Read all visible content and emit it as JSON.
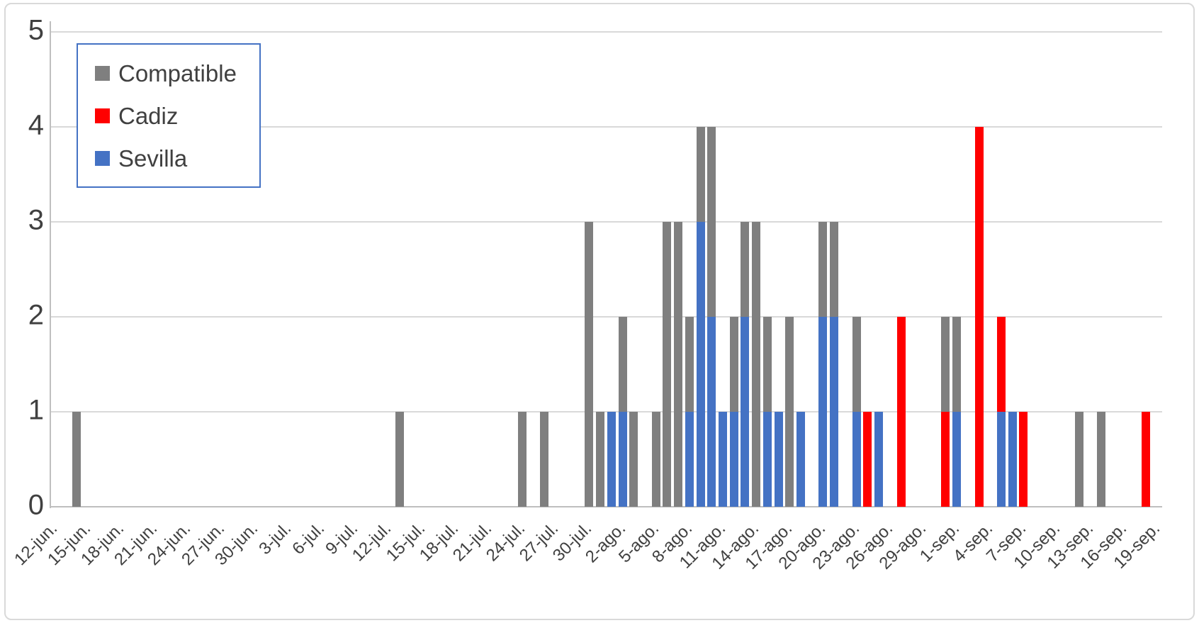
{
  "legend": {
    "items": [
      {
        "label": "Compatible",
        "color": "#7f7f7f"
      },
      {
        "label": "Cadiz",
        "color": "#ff0000"
      },
      {
        "label": "Sevilla",
        "color": "#4472c4"
      }
    ]
  },
  "y_axis": {
    "ticks": [
      5,
      4,
      3,
      2,
      1,
      0
    ]
  },
  "x_axis": {
    "first_category": "12-jun.",
    "last_category": "19-sep.",
    "label_interval_days": 3,
    "labels": [
      "12-jun.",
      "15-jun.",
      "18-jun.",
      "21-jun.",
      "24-jun.",
      "27-jun.",
      "30-jun.",
      "3-jul.",
      "6-jul.",
      "9-jul.",
      "12-jul.",
      "15-jul.",
      "18-jul.",
      "21-jul.",
      "24-jul.",
      "27-jul.",
      "30-jul.",
      "2-ago.",
      "5-ago.",
      "8-ago.",
      "11-ago.",
      "14-ago.",
      "17-ago.",
      "20-ago.",
      "23-ago.",
      "26-ago.",
      "29-ago.",
      "1-sep.",
      "4-sep.",
      "7-sep.",
      "10-sep.",
      "13-sep.",
      "16-sep.",
      "19-sep."
    ]
  },
  "chart_data": {
    "type": "bar",
    "stacked": true,
    "title": "",
    "xlabel": "",
    "ylabel": "",
    "ylim": [
      0,
      5
    ],
    "gridlines": [
      1,
      2,
      3,
      4,
      5
    ],
    "legend_position": "top-left",
    "series_order_bottom_to_top": [
      "Sevilla",
      "Cadiz",
      "Compatible"
    ],
    "series_colors": {
      "Sevilla": "#4472c4",
      "Cadiz": "#ff0000",
      "Compatible": "#7f7f7f"
    },
    "bars": [
      {
        "date": "14-jun",
        "day_index": 2,
        "sevilla": 0,
        "cadiz": 0,
        "compatible": 1
      },
      {
        "date": "13-jul",
        "day_index": 31,
        "sevilla": 0,
        "cadiz": 0,
        "compatible": 1
      },
      {
        "date": "24-jul",
        "day_index": 42,
        "sevilla": 0,
        "cadiz": 0,
        "compatible": 1
      },
      {
        "date": "26-jul",
        "day_index": 44,
        "sevilla": 0,
        "cadiz": 0,
        "compatible": 1
      },
      {
        "date": "30-jul",
        "day_index": 48,
        "sevilla": 0,
        "cadiz": 0,
        "compatible": 3
      },
      {
        "date": "31-jul",
        "day_index": 49,
        "sevilla": 0,
        "cadiz": 0,
        "compatible": 1
      },
      {
        "date": "1-ago",
        "day_index": 50,
        "sevilla": 1,
        "cadiz": 0,
        "compatible": 0
      },
      {
        "date": "2-ago",
        "day_index": 51,
        "sevilla": 1,
        "cadiz": 0,
        "compatible": 1
      },
      {
        "date": "3-ago",
        "day_index": 52,
        "sevilla": 0,
        "cadiz": 0,
        "compatible": 1
      },
      {
        "date": "5-ago",
        "day_index": 54,
        "sevilla": 0,
        "cadiz": 0,
        "compatible": 1
      },
      {
        "date": "6-ago",
        "day_index": 55,
        "sevilla": 0,
        "cadiz": 0,
        "compatible": 3
      },
      {
        "date": "7-ago",
        "day_index": 56,
        "sevilla": 0,
        "cadiz": 0,
        "compatible": 3
      },
      {
        "date": "8-ago",
        "day_index": 57,
        "sevilla": 1,
        "cadiz": 0,
        "compatible": 1
      },
      {
        "date": "9-ago",
        "day_index": 58,
        "sevilla": 3,
        "cadiz": 0,
        "compatible": 1
      },
      {
        "date": "10-ago",
        "day_index": 59,
        "sevilla": 2,
        "cadiz": 0,
        "compatible": 2
      },
      {
        "date": "11-ago",
        "day_index": 60,
        "sevilla": 1,
        "cadiz": 0,
        "compatible": 0
      },
      {
        "date": "12-ago",
        "day_index": 61,
        "sevilla": 1,
        "cadiz": 0,
        "compatible": 1
      },
      {
        "date": "13-ago",
        "day_index": 62,
        "sevilla": 2,
        "cadiz": 0,
        "compatible": 1
      },
      {
        "date": "14-ago",
        "day_index": 63,
        "sevilla": 0,
        "cadiz": 0,
        "compatible": 3
      },
      {
        "date": "15-ago",
        "day_index": 64,
        "sevilla": 1,
        "cadiz": 0,
        "compatible": 1
      },
      {
        "date": "16-ago",
        "day_index": 65,
        "sevilla": 1,
        "cadiz": 0,
        "compatible": 0
      },
      {
        "date": "17-ago",
        "day_index": 66,
        "sevilla": 0,
        "cadiz": 0,
        "compatible": 2
      },
      {
        "date": "18-ago",
        "day_index": 67,
        "sevilla": 1,
        "cadiz": 0,
        "compatible": 0
      },
      {
        "date": "20-ago",
        "day_index": 69,
        "sevilla": 2,
        "cadiz": 0,
        "compatible": 1
      },
      {
        "date": "21-ago",
        "day_index": 70,
        "sevilla": 2,
        "cadiz": 0,
        "compatible": 1
      },
      {
        "date": "23-ago",
        "day_index": 72,
        "sevilla": 1,
        "cadiz": 0,
        "compatible": 1
      },
      {
        "date": "24-ago",
        "day_index": 73,
        "sevilla": 0,
        "cadiz": 1,
        "compatible": 0
      },
      {
        "date": "25-ago",
        "day_index": 74,
        "sevilla": 1,
        "cadiz": 0,
        "compatible": 0
      },
      {
        "date": "27-ago",
        "day_index": 76,
        "sevilla": 0,
        "cadiz": 2,
        "compatible": 0
      },
      {
        "date": "31-ago",
        "day_index": 80,
        "sevilla": 0,
        "cadiz": 1,
        "compatible": 1
      },
      {
        "date": "1-sep",
        "day_index": 81,
        "sevilla": 1,
        "cadiz": 0,
        "compatible": 1
      },
      {
        "date": "3-sep",
        "day_index": 83,
        "sevilla": 0,
        "cadiz": 4,
        "compatible": 0
      },
      {
        "date": "5-sep",
        "day_index": 85,
        "sevilla": 1,
        "cadiz": 1,
        "compatible": 0
      },
      {
        "date": "6-sep",
        "day_index": 86,
        "sevilla": 1,
        "cadiz": 0,
        "compatible": 0
      },
      {
        "date": "7-sep",
        "day_index": 87,
        "sevilla": 0,
        "cadiz": 1,
        "compatible": 0
      },
      {
        "date": "12-sep",
        "day_index": 92,
        "sevilla": 0,
        "cadiz": 0,
        "compatible": 1
      },
      {
        "date": "14-sep",
        "day_index": 94,
        "sevilla": 0,
        "cadiz": 0,
        "compatible": 1
      },
      {
        "date": "18-sep",
        "day_index": 98,
        "sevilla": 0,
        "cadiz": 1,
        "compatible": 0
      }
    ]
  }
}
